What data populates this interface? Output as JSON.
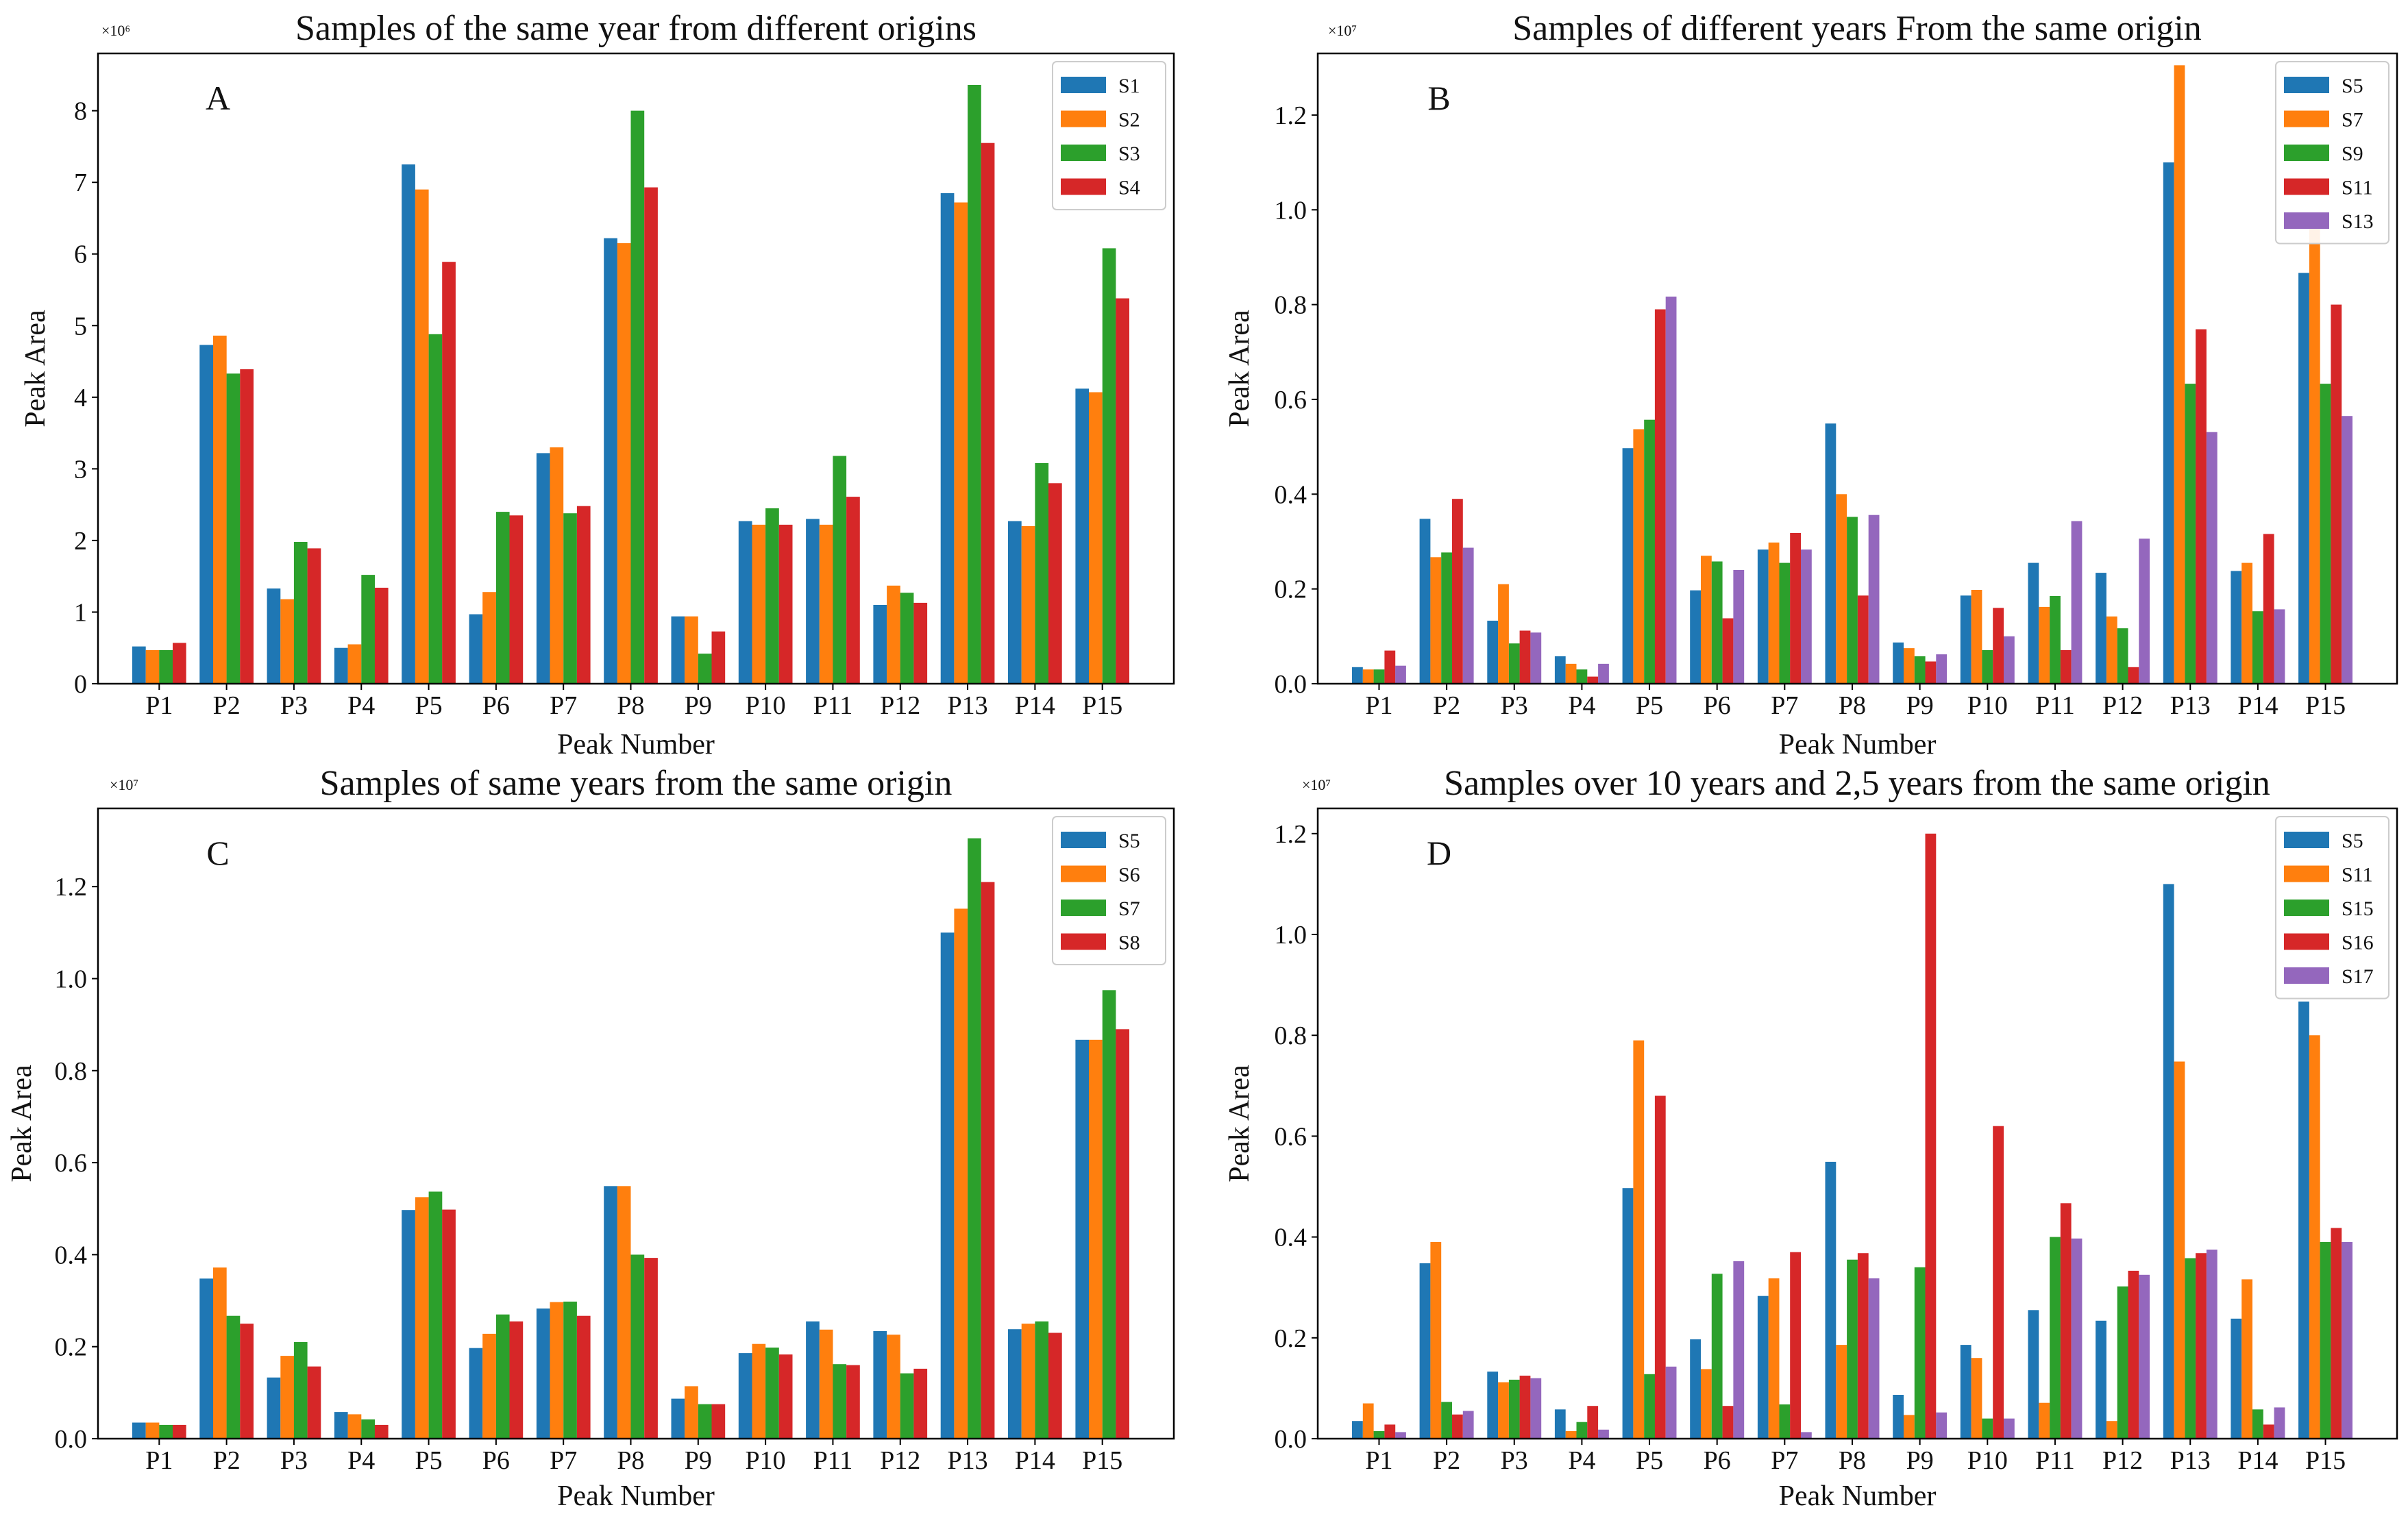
{
  "chart_data": [
    {
      "type": "bar",
      "panel_label": "A",
      "title": "Samples of the same year from different origins",
      "xlabel": "Peak Number",
      "ylabel": "Peak Area",
      "y_multiplier": "×10⁶",
      "ylim": [
        0,
        8.8
      ],
      "yticks": [
        "0",
        "1",
        "2",
        "3",
        "4",
        "5",
        "6",
        "7",
        "8"
      ],
      "legend_position": "top-right",
      "categories": [
        "P1",
        "P2",
        "P3",
        "P4",
        "P5",
        "P6",
        "P7",
        "P8",
        "P9",
        "P10",
        "P11",
        "P12",
        "P13",
        "P14",
        "P15"
      ],
      "series": [
        {
          "name": "S1",
          "color": "#1f77b4",
          "values": [
            0.52,
            4.73,
            1.33,
            0.5,
            7.25,
            0.97,
            3.22,
            6.22,
            0.94,
            2.27,
            2.3,
            1.1,
            6.85,
            2.27,
            4.12
          ]
        },
        {
          "name": "S2",
          "color": "#ff7f0e",
          "values": [
            0.47,
            4.86,
            1.18,
            0.55,
            6.9,
            1.28,
            3.3,
            6.15,
            0.94,
            2.22,
            2.22,
            1.37,
            6.72,
            2.2,
            4.07
          ]
        },
        {
          "name": "S3",
          "color": "#2ca02c",
          "values": [
            0.47,
            4.33,
            1.98,
            1.52,
            4.88,
            2.4,
            2.38,
            8.0,
            0.42,
            2.45,
            3.18,
            1.27,
            8.36,
            3.08,
            6.08
          ]
        },
        {
          "name": "S4",
          "color": "#d62728",
          "values": [
            0.57,
            4.39,
            1.89,
            1.34,
            5.89,
            2.35,
            2.48,
            6.93,
            0.73,
            2.22,
            2.61,
            1.13,
            7.55,
            2.8,
            5.38
          ]
        }
      ]
    },
    {
      "type": "bar",
      "panel_label": "B",
      "title": "Samples of different years From the same origin",
      "xlabel": "Peak Number",
      "ylabel": "Peak Area",
      "y_multiplier": "×10⁷",
      "ylim": [
        0,
        1.33
      ],
      "yticks": [
        "0.0",
        "0.2",
        "0.4",
        "0.6",
        "0.8",
        "1.0",
        "1.2"
      ],
      "legend_position": "top-right",
      "categories": [
        "P1",
        "P2",
        "P3",
        "P4",
        "P5",
        "P6",
        "P7",
        "P8",
        "P9",
        "P10",
        "P11",
        "P12",
        "P13",
        "P14",
        "P15"
      ],
      "series": [
        {
          "name": "S5",
          "color": "#1f77b4",
          "values": [
            0.035,
            0.348,
            0.133,
            0.058,
            0.497,
            0.197,
            0.283,
            0.549,
            0.087,
            0.186,
            0.255,
            0.234,
            1.1,
            0.238,
            0.867
          ]
        },
        {
          "name": "S7",
          "color": "#ff7f0e",
          "values": [
            0.03,
            0.267,
            0.21,
            0.042,
            0.537,
            0.27,
            0.298,
            0.4,
            0.075,
            0.198,
            0.162,
            0.142,
            1.305,
            0.255,
            0.975
          ]
        },
        {
          "name": "S9",
          "color": "#2ca02c",
          "values": [
            0.03,
            0.277,
            0.085,
            0.03,
            0.557,
            0.258,
            0.255,
            0.352,
            0.058,
            0.071,
            0.185,
            0.117,
            0.633,
            0.153,
            0.633
          ]
        },
        {
          "name": "S11",
          "color": "#d62728",
          "values": [
            0.07,
            0.39,
            0.112,
            0.015,
            0.79,
            0.138,
            0.318,
            0.186,
            0.047,
            0.16,
            0.071,
            0.035,
            0.748,
            0.316,
            0.8
          ]
        },
        {
          "name": "S13",
          "color": "#9467bd",
          "values": [
            0.038,
            0.287,
            0.108,
            0.042,
            0.817,
            0.24,
            0.283,
            0.356,
            0.062,
            0.1,
            0.343,
            0.306,
            0.531,
            0.157,
            0.565
          ]
        }
      ]
    },
    {
      "type": "bar",
      "panel_label": "C",
      "title": "Samples of same years from the same origin",
      "xlabel": "Peak Number",
      "ylabel": "Peak Area",
      "y_multiplier": "×10⁷",
      "ylim": [
        0,
        1.37
      ],
      "yticks": [
        "0.0",
        "0.2",
        "0.4",
        "0.6",
        "0.8",
        "1.0",
        "1.2"
      ],
      "legend_position": "top-right",
      "categories": [
        "P1",
        "P2",
        "P3",
        "P4",
        "P5",
        "P6",
        "P7",
        "P8",
        "P9",
        "P10",
        "P11",
        "P12",
        "P13",
        "P14",
        "P15"
      ],
      "series": [
        {
          "name": "S5",
          "color": "#1f77b4",
          "values": [
            0.035,
            0.348,
            0.133,
            0.058,
            0.497,
            0.197,
            0.283,
            0.549,
            0.087,
            0.186,
            0.255,
            0.234,
            1.1,
            0.238,
            0.867
          ]
        },
        {
          "name": "S6",
          "color": "#ff7f0e",
          "values": [
            0.035,
            0.372,
            0.18,
            0.053,
            0.525,
            0.228,
            0.297,
            0.549,
            0.114,
            0.206,
            0.237,
            0.226,
            1.152,
            0.25,
            0.867
          ]
        },
        {
          "name": "S7",
          "color": "#2ca02c",
          "values": [
            0.03,
            0.267,
            0.21,
            0.042,
            0.537,
            0.27,
            0.298,
            0.4,
            0.075,
            0.198,
            0.162,
            0.142,
            1.305,
            0.255,
            0.975
          ]
        },
        {
          "name": "S8",
          "color": "#d62728",
          "values": [
            0.03,
            0.25,
            0.157,
            0.03,
            0.498,
            0.255,
            0.267,
            0.393,
            0.075,
            0.183,
            0.16,
            0.152,
            1.21,
            0.23,
            0.89
          ]
        }
      ]
    },
    {
      "type": "bar",
      "panel_label": "D",
      "title": "Samples over 10 years and 2,5 years from the same origin",
      "xlabel": "Peak Number",
      "ylabel": "Peak Area",
      "y_multiplier": "×10⁷",
      "ylim": [
        0,
        1.25
      ],
      "yticks": [
        "0.0",
        "0.2",
        "0.4",
        "0.6",
        "0.8",
        "1.0",
        "1.2"
      ],
      "legend_position": "top-right",
      "categories": [
        "P1",
        "P2",
        "P3",
        "P4",
        "P5",
        "P6",
        "P7",
        "P8",
        "P9",
        "P10",
        "P11",
        "P12",
        "P13",
        "P14",
        "P15"
      ],
      "series": [
        {
          "name": "S5",
          "color": "#1f77b4",
          "values": [
            0.035,
            0.348,
            0.133,
            0.058,
            0.497,
            0.197,
            0.283,
            0.549,
            0.087,
            0.186,
            0.255,
            0.234,
            1.1,
            0.238,
            0.867
          ]
        },
        {
          "name": "S11",
          "color": "#ff7f0e",
          "values": [
            0.07,
            0.39,
            0.112,
            0.015,
            0.79,
            0.138,
            0.318,
            0.186,
            0.047,
            0.16,
            0.071,
            0.035,
            0.748,
            0.316,
            0.8
          ]
        },
        {
          "name": "S15",
          "color": "#2ca02c",
          "values": [
            0.015,
            0.073,
            0.117,
            0.033,
            0.128,
            0.327,
            0.068,
            0.355,
            0.34,
            0.04,
            0.4,
            0.302,
            0.358,
            0.058,
            0.39
          ]
        },
        {
          "name": "S16",
          "color": "#d62728",
          "values": [
            0.028,
            0.048,
            0.125,
            0.065,
            0.68,
            0.065,
            0.37,
            0.368,
            1.2,
            0.62,
            0.467,
            0.333,
            0.368,
            0.028,
            0.418
          ]
        },
        {
          "name": "S17",
          "color": "#9467bd",
          "values": [
            0.013,
            0.055,
            0.12,
            0.018,
            0.143,
            0.352,
            0.013,
            0.318,
            0.052,
            0.04,
            0.397,
            0.325,
            0.375,
            0.062,
            0.39
          ]
        }
      ]
    }
  ]
}
